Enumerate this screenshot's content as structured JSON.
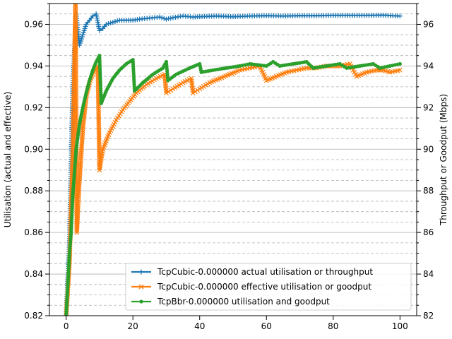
{
  "chart_data": {
    "type": "line",
    "title": "",
    "xlabel": "",
    "ylabel": "Utilisation (actual and effective)",
    "y2label": "Throughput or Goodput (Mbps)",
    "xlim": [
      -5,
      105
    ],
    "ylim": [
      0.82,
      0.97
    ],
    "y2lim": [
      82,
      97
    ],
    "xticks": [
      0,
      20,
      40,
      60,
      80,
      100
    ],
    "yticks": [
      0.82,
      0.84,
      0.86,
      0.88,
      0.9,
      0.92,
      0.94,
      0.96
    ],
    "yticklabels": [
      "0.82",
      "0.84",
      "0.86",
      "0.88",
      "0.90",
      "0.92",
      "0.94",
      "0.96"
    ],
    "y2ticks": [
      82,
      84,
      86,
      88,
      90,
      92,
      94,
      96
    ],
    "grid": "y-major solid, y-minor dashed",
    "legend_position": "lower-right",
    "series": [
      {
        "name": "TcpCubic-0.000000 actual utilisation or throughput",
        "color": "#1f77b4",
        "marker": "plus",
        "points": [
          [
            0,
            0.82
          ],
          [
            1,
            0.855
          ],
          [
            2,
            0.93
          ],
          [
            3,
            0.965
          ],
          [
            4,
            0.95
          ],
          [
            5,
            0.955
          ],
          [
            6,
            0.96
          ],
          [
            7,
            0.962
          ],
          [
            8,
            0.964
          ],
          [
            9,
            0.965
          ],
          [
            10,
            0.957
          ],
          [
            11,
            0.958
          ],
          [
            12,
            0.96
          ],
          [
            14,
            0.961
          ],
          [
            16,
            0.962
          ],
          [
            18,
            0.962
          ],
          [
            20,
            0.962
          ],
          [
            22,
            0.9625
          ],
          [
            25,
            0.963
          ],
          [
            28,
            0.9635
          ],
          [
            30,
            0.9625
          ],
          [
            32,
            0.9632
          ],
          [
            35,
            0.964
          ],
          [
            38,
            0.9635
          ],
          [
            40,
            0.9637
          ],
          [
            45,
            0.964
          ],
          [
            50,
            0.9637
          ],
          [
            55,
            0.964
          ],
          [
            60,
            0.9642
          ],
          [
            65,
            0.964
          ],
          [
            70,
            0.9642
          ],
          [
            75,
            0.9642
          ],
          [
            80,
            0.9643
          ],
          [
            85,
            0.9643
          ],
          [
            90,
            0.9643
          ],
          [
            95,
            0.9644
          ],
          [
            100,
            0.964
          ]
        ]
      },
      {
        "name": "TcpCubic-0.000000 effective utilisation or goodput",
        "color": "#ff7f0e",
        "marker": "x",
        "points": [
          [
            0,
            0.82
          ],
          [
            1,
            0.845
          ],
          [
            2,
            0.9
          ],
          [
            2.8,
            0.97
          ],
          [
            3.2,
            0.86
          ],
          [
            3.8,
            0.88
          ],
          [
            5,
            0.91
          ],
          [
            6,
            0.925
          ],
          [
            7,
            0.932
          ],
          [
            8,
            0.936
          ],
          [
            9.5,
            0.94
          ],
          [
            10,
            0.89
          ],
          [
            11,
            0.9
          ],
          [
            13,
            0.908
          ],
          [
            15,
            0.914
          ],
          [
            17,
            0.919
          ],
          [
            19,
            0.923
          ],
          [
            21,
            0.927
          ],
          [
            24,
            0.931
          ],
          [
            27,
            0.934
          ],
          [
            29.5,
            0.936
          ],
          [
            30,
            0.927
          ],
          [
            32,
            0.929
          ],
          [
            35,
            0.932
          ],
          [
            37.5,
            0.934
          ],
          [
            38,
            0.927
          ],
          [
            40,
            0.929
          ],
          [
            43,
            0.932
          ],
          [
            46,
            0.934
          ],
          [
            49,
            0.936
          ],
          [
            52,
            0.938
          ],
          [
            55,
            0.939
          ],
          [
            58,
            0.94
          ],
          [
            60,
            0.933
          ],
          [
            63,
            0.935
          ],
          [
            66,
            0.937
          ],
          [
            69,
            0.938
          ],
          [
            72,
            0.939
          ],
          [
            75,
            0.939
          ],
          [
            78,
            0.94
          ],
          [
            82,
            0.94
          ],
          [
            85,
            0.941
          ],
          [
            87,
            0.935
          ],
          [
            90,
            0.937
          ],
          [
            93,
            0.938
          ],
          [
            95,
            0.938
          ],
          [
            97,
            0.937
          ],
          [
            100,
            0.938
          ]
        ]
      },
      {
        "name": "TcpBbr-0.000000 utilisation and goodput",
        "color": "#2ca02c",
        "marker": "dot",
        "points": [
          [
            0,
            0.82
          ],
          [
            1,
            0.85
          ],
          [
            1.5,
            0.86
          ],
          [
            2,
            0.878
          ],
          [
            3,
            0.9
          ],
          [
            4,
            0.912
          ],
          [
            5,
            0.92
          ],
          [
            6,
            0.927
          ],
          [
            7,
            0.933
          ],
          [
            8,
            0.938
          ],
          [
            9,
            0.942
          ],
          [
            10,
            0.945
          ],
          [
            10.5,
            0.922
          ],
          [
            12,
            0.928
          ],
          [
            14,
            0.934
          ],
          [
            16,
            0.938
          ],
          [
            18,
            0.941
          ],
          [
            20,
            0.943
          ],
          [
            20.5,
            0.928
          ],
          [
            23,
            0.932
          ],
          [
            26,
            0.936
          ],
          [
            29,
            0.939
          ],
          [
            30,
            0.942
          ],
          [
            30.5,
            0.933
          ],
          [
            33,
            0.936
          ],
          [
            37,
            0.939
          ],
          [
            40,
            0.941
          ],
          [
            40.5,
            0.937
          ],
          [
            44,
            0.938
          ],
          [
            48,
            0.939
          ],
          [
            52,
            0.94
          ],
          [
            55,
            0.941
          ],
          [
            60,
            0.94
          ],
          [
            62,
            0.942
          ],
          [
            64,
            0.94
          ],
          [
            68,
            0.941
          ],
          [
            72,
            0.942
          ],
          [
            74,
            0.939
          ],
          [
            78,
            0.94
          ],
          [
            82,
            0.941
          ],
          [
            84,
            0.939
          ],
          [
            88,
            0.94
          ],
          [
            92,
            0.941
          ],
          [
            94,
            0.939
          ],
          [
            97,
            0.94
          ],
          [
            100,
            0.941
          ]
        ]
      }
    ]
  }
}
